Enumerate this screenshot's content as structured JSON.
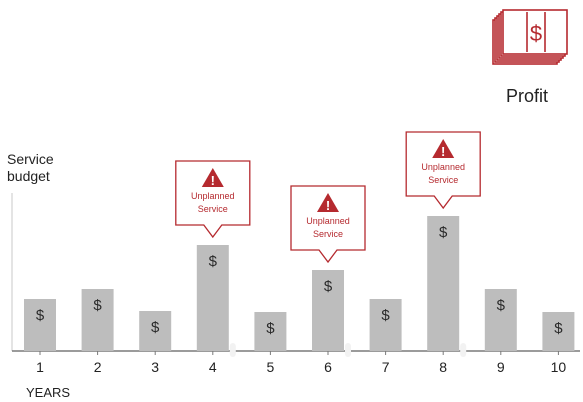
{
  "chart_data": {
    "type": "bar",
    "categories": [
      "1",
      "2",
      "3",
      "4",
      "5",
      "6",
      "7",
      "8",
      "9",
      "10"
    ],
    "values": [
      52,
      62,
      40,
      106,
      39,
      81,
      52,
      135,
      62,
      39
    ],
    "ylabel": "Service\nbudget",
    "xlabel": "YEARS",
    "bar_symbol": "$",
    "bar_color": "#bdbdbd",
    "callouts": [
      {
        "category": "4",
        "icon": "warning-icon",
        "text": "Unplanned\nService"
      },
      {
        "category": "6",
        "icon": "warning-icon",
        "text": "Unplanned\nService"
      },
      {
        "category": "8",
        "icon": "warning-icon",
        "text": "Unplanned\nService"
      }
    ],
    "callout_color": "#b52a2f",
    "profit": {
      "label": "Profit",
      "icon": "money-stack-icon",
      "symbol": "$"
    }
  }
}
